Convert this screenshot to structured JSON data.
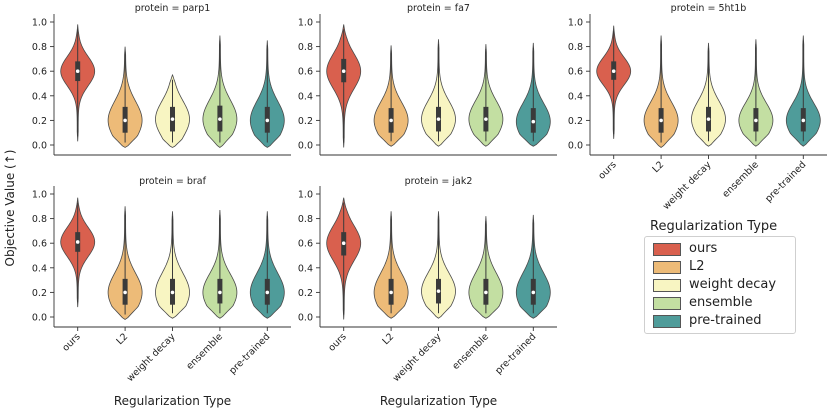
{
  "chart_data": {
    "type": "violin",
    "ylabel": "Objective Value (↑)",
    "xlabel": "Regularization Type",
    "categories": [
      "ours",
      "L2",
      "weight decay",
      "ensemble",
      "pre-trained"
    ],
    "colors": {
      "ours": "#d9604e",
      "L2": "#edbb78",
      "weight decay": "#f8f5c2",
      "ensemble": "#c3dfa2",
      "pre-trained": "#4f9c9a"
    },
    "yticks": [
      "0.0",
      "0.2",
      "0.4",
      "0.6",
      "0.8",
      "1.0"
    ],
    "ylim": [
      -0.05,
      1.02
    ],
    "legend": {
      "title": "Regularization Type",
      "entries": [
        "ours",
        "L2",
        "weight decay",
        "ensemble",
        "pre-trained"
      ]
    },
    "panels": [
      {
        "title": "protein = parp1",
        "show_xlabels": false,
        "show_xtitle": false,
        "violins": {
          "ours": {
            "min": 0.03,
            "max": 0.98,
            "q1": 0.52,
            "median": 0.6,
            "q3": 0.68
          },
          "L2": {
            "min": -0.02,
            "max": 0.8,
            "q1": 0.1,
            "median": 0.2,
            "q3": 0.31
          },
          "weight decay": {
            "min": -0.02,
            "max": 0.57,
            "q1": 0.11,
            "median": 0.21,
            "q3": 0.31
          },
          "ensemble": {
            "min": -0.02,
            "max": 0.89,
            "q1": 0.11,
            "median": 0.21,
            "q3": 0.32
          },
          "pre-trained": {
            "min": -0.02,
            "max": 0.85,
            "q1": 0.1,
            "median": 0.2,
            "q3": 0.31
          }
        }
      },
      {
        "title": "protein = fa7",
        "show_xlabels": false,
        "show_xtitle": false,
        "violins": {
          "ours": {
            "min": -0.02,
            "max": 0.98,
            "q1": 0.51,
            "median": 0.6,
            "q3": 0.7
          },
          "L2": {
            "min": -0.01,
            "max": 0.81,
            "q1": 0.1,
            "median": 0.2,
            "q3": 0.3
          },
          "weight decay": {
            "min": -0.01,
            "max": 0.86,
            "q1": 0.11,
            "median": 0.21,
            "q3": 0.31
          },
          "ensemble": {
            "min": -0.01,
            "max": 0.82,
            "q1": 0.11,
            "median": 0.21,
            "q3": 0.31
          },
          "pre-trained": {
            "min": -0.01,
            "max": 0.83,
            "q1": 0.1,
            "median": 0.19,
            "q3": 0.3
          }
        }
      },
      {
        "title": "protein = 5ht1b",
        "show_xlabels": true,
        "show_xtitle": false,
        "violins": {
          "ours": {
            "min": 0.05,
            "max": 0.97,
            "q1": 0.53,
            "median": 0.6,
            "q3": 0.68
          },
          "L2": {
            "min": -0.02,
            "max": 0.89,
            "q1": 0.1,
            "median": 0.2,
            "q3": 0.3
          },
          "weight decay": {
            "min": -0.01,
            "max": 0.83,
            "q1": 0.11,
            "median": 0.21,
            "q3": 0.31
          },
          "ensemble": {
            "min": -0.01,
            "max": 0.86,
            "q1": 0.11,
            "median": 0.2,
            "q3": 0.3
          },
          "pre-trained": {
            "min": -0.01,
            "max": 0.89,
            "q1": 0.11,
            "median": 0.2,
            "q3": 0.3
          }
        }
      },
      {
        "title": "protein = braf",
        "show_xlabels": true,
        "show_xtitle": true,
        "violins": {
          "ours": {
            "min": 0.08,
            "max": 0.97,
            "q1": 0.53,
            "median": 0.61,
            "q3": 0.69
          },
          "L2": {
            "min": -0.02,
            "max": 0.9,
            "q1": 0.1,
            "median": 0.2,
            "q3": 0.31
          },
          "weight decay": {
            "min": -0.01,
            "max": 0.86,
            "q1": 0.1,
            "median": 0.2,
            "q3": 0.31
          },
          "ensemble": {
            "min": -0.01,
            "max": 0.87,
            "q1": 0.11,
            "median": 0.2,
            "q3": 0.31
          },
          "pre-trained": {
            "min": -0.01,
            "max": 0.86,
            "q1": 0.1,
            "median": 0.2,
            "q3": 0.31
          }
        }
      },
      {
        "title": "protein = jak2",
        "show_xlabels": true,
        "show_xtitle": true,
        "violins": {
          "ours": {
            "min": -0.02,
            "max": 0.97,
            "q1": 0.5,
            "median": 0.6,
            "q3": 0.69
          },
          "L2": {
            "min": -0.01,
            "max": 0.86,
            "q1": 0.1,
            "median": 0.2,
            "q3": 0.31
          },
          "weight decay": {
            "min": -0.01,
            "max": 0.86,
            "q1": 0.11,
            "median": 0.21,
            "q3": 0.31
          },
          "ensemble": {
            "min": -0.01,
            "max": 0.82,
            "q1": 0.1,
            "median": 0.2,
            "q3": 0.31
          },
          "pre-trained": {
            "min": -0.01,
            "max": 0.83,
            "q1": 0.1,
            "median": 0.2,
            "q3": 0.31
          }
        }
      }
    ]
  }
}
